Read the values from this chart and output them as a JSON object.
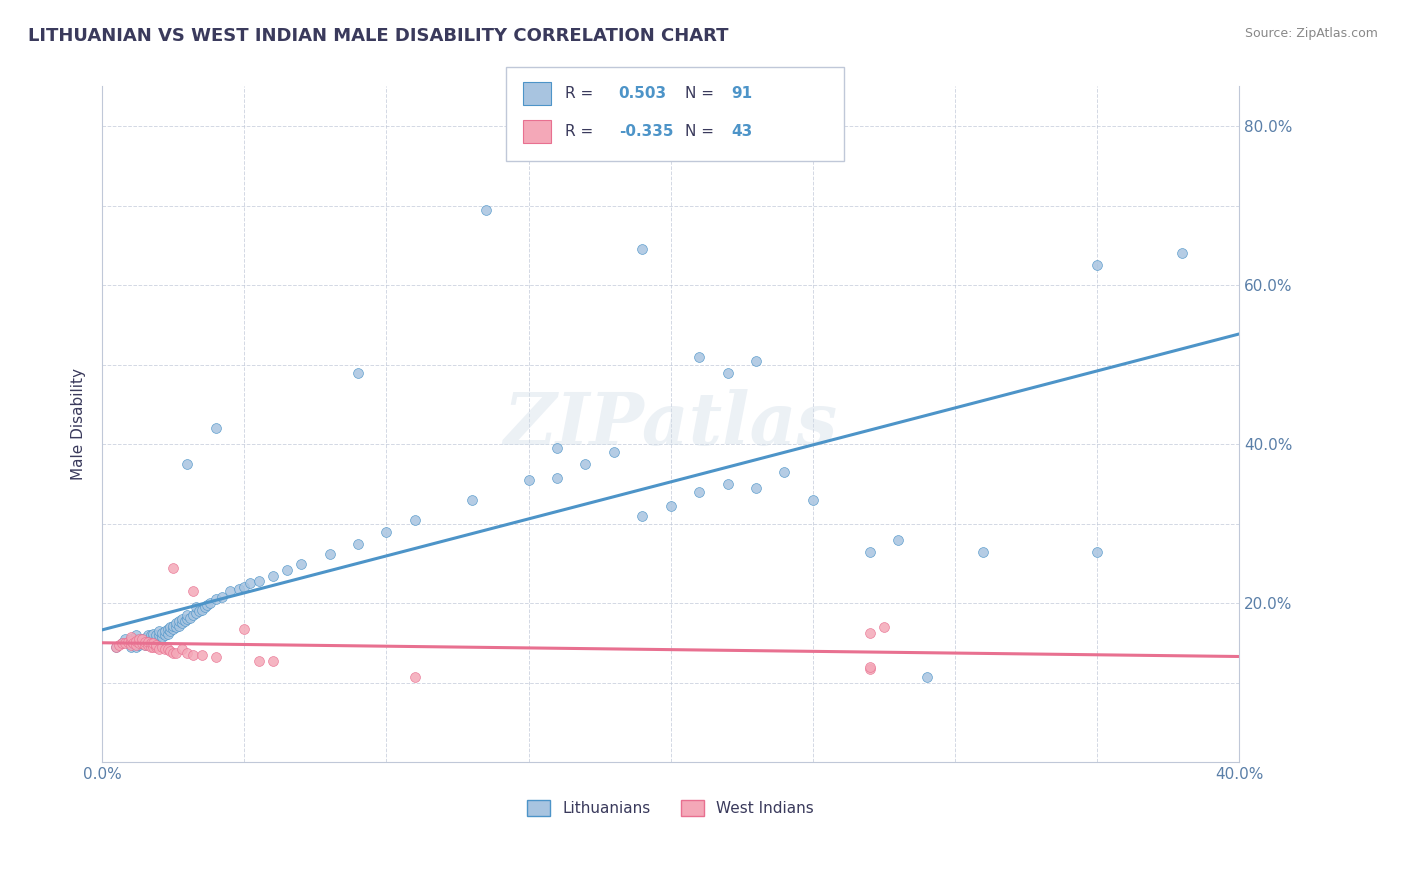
{
  "title": "LITHUANIAN VS WEST INDIAN MALE DISABILITY CORRELATION CHART",
  "source": "Source: ZipAtlas.com",
  "ylabel": "Male Disability",
  "xlim": [
    0.0,
    0.4
  ],
  "ylim": [
    0.0,
    0.85
  ],
  "x_ticks": [
    0.0,
    0.05,
    0.1,
    0.15,
    0.2,
    0.25,
    0.3,
    0.35,
    0.4
  ],
  "x_tick_labels": [
    "0.0%",
    "",
    "",
    "",
    "",
    "",
    "",
    "",
    "40.0%"
  ],
  "y_ticks": [
    0.0,
    0.1,
    0.2,
    0.3,
    0.4,
    0.5,
    0.6,
    0.7,
    0.8
  ],
  "y_tick_labels": [
    "",
    "",
    "20.0%",
    "",
    "40.0%",
    "",
    "60.0%",
    "",
    "80.0%"
  ],
  "blue_color": "#a8c4e0",
  "pink_color": "#f4a8b8",
  "blue_line_color": "#4d94c8",
  "pink_line_color": "#e87090",
  "r_blue": 0.503,
  "n_blue": 91,
  "r_pink": -0.335,
  "n_pink": 43,
  "legend_label_blue": "Lithuanians",
  "legend_label_pink": "West Indians",
  "watermark": "ZIPatlas",
  "title_color": "#3a3a5c",
  "axis_label_color": "#3a3a5c",
  "tick_label_color": "#5a7fa8",
  "legend_r_color": "#3a3a5c",
  "legend_n_color": "#4d94c8",
  "blue_scatter": [
    [
      0.005,
      0.145
    ],
    [
      0.007,
      0.15
    ],
    [
      0.008,
      0.155
    ],
    [
      0.01,
      0.145
    ],
    [
      0.01,
      0.15
    ],
    [
      0.01,
      0.155
    ],
    [
      0.012,
      0.145
    ],
    [
      0.012,
      0.15
    ],
    [
      0.012,
      0.155
    ],
    [
      0.012,
      0.16
    ],
    [
      0.013,
      0.148
    ],
    [
      0.014,
      0.15
    ],
    [
      0.014,
      0.155
    ],
    [
      0.015,
      0.148
    ],
    [
      0.015,
      0.152
    ],
    [
      0.015,
      0.157
    ],
    [
      0.016,
      0.15
    ],
    [
      0.016,
      0.155
    ],
    [
      0.016,
      0.16
    ],
    [
      0.017,
      0.15
    ],
    [
      0.017,
      0.155
    ],
    [
      0.017,
      0.16
    ],
    [
      0.018,
      0.152
    ],
    [
      0.018,
      0.157
    ],
    [
      0.018,
      0.162
    ],
    [
      0.019,
      0.155
    ],
    [
      0.019,
      0.16
    ],
    [
      0.02,
      0.155
    ],
    [
      0.02,
      0.16
    ],
    [
      0.02,
      0.165
    ],
    [
      0.021,
      0.158
    ],
    [
      0.021,
      0.163
    ],
    [
      0.022,
      0.16
    ],
    [
      0.022,
      0.165
    ],
    [
      0.023,
      0.162
    ],
    [
      0.023,
      0.168
    ],
    [
      0.024,
      0.165
    ],
    [
      0.024,
      0.17
    ],
    [
      0.025,
      0.168
    ],
    [
      0.025,
      0.172
    ],
    [
      0.026,
      0.17
    ],
    [
      0.026,
      0.175
    ],
    [
      0.027,
      0.172
    ],
    [
      0.027,
      0.178
    ],
    [
      0.028,
      0.175
    ],
    [
      0.028,
      0.18
    ],
    [
      0.029,
      0.178
    ],
    [
      0.03,
      0.18
    ],
    [
      0.03,
      0.185
    ],
    [
      0.031,
      0.182
    ],
    [
      0.032,
      0.185
    ],
    [
      0.033,
      0.188
    ],
    [
      0.033,
      0.195
    ],
    [
      0.034,
      0.19
    ],
    [
      0.035,
      0.192
    ],
    [
      0.036,
      0.195
    ],
    [
      0.037,
      0.198
    ],
    [
      0.038,
      0.2
    ],
    [
      0.04,
      0.205
    ],
    [
      0.042,
      0.208
    ],
    [
      0.045,
      0.215
    ],
    [
      0.048,
      0.218
    ],
    [
      0.05,
      0.22
    ],
    [
      0.052,
      0.225
    ],
    [
      0.055,
      0.228
    ],
    [
      0.06,
      0.235
    ],
    [
      0.065,
      0.242
    ],
    [
      0.07,
      0.25
    ],
    [
      0.08,
      0.262
    ],
    [
      0.09,
      0.275
    ],
    [
      0.1,
      0.29
    ],
    [
      0.11,
      0.305
    ],
    [
      0.13,
      0.33
    ],
    [
      0.15,
      0.355
    ],
    [
      0.16,
      0.358
    ],
    [
      0.16,
      0.395
    ],
    [
      0.17,
      0.375
    ],
    [
      0.18,
      0.39
    ],
    [
      0.19,
      0.31
    ],
    [
      0.2,
      0.322
    ],
    [
      0.21,
      0.34
    ],
    [
      0.22,
      0.35
    ],
    [
      0.23,
      0.345
    ],
    [
      0.24,
      0.365
    ],
    [
      0.25,
      0.33
    ],
    [
      0.27,
      0.265
    ],
    [
      0.28,
      0.28
    ],
    [
      0.29,
      0.108
    ],
    [
      0.31,
      0.265
    ],
    [
      0.35,
      0.265
    ]
  ],
  "blue_outliers": [
    [
      0.03,
      0.375
    ],
    [
      0.04,
      0.42
    ],
    [
      0.09,
      0.49
    ],
    [
      0.135,
      0.695
    ],
    [
      0.19,
      0.645
    ],
    [
      0.21,
      0.51
    ],
    [
      0.22,
      0.49
    ],
    [
      0.23,
      0.505
    ],
    [
      0.35,
      0.625
    ],
    [
      0.38,
      0.64
    ]
  ],
  "pink_scatter": [
    [
      0.005,
      0.145
    ],
    [
      0.006,
      0.148
    ],
    [
      0.007,
      0.15
    ],
    [
      0.008,
      0.15
    ],
    [
      0.009,
      0.152
    ],
    [
      0.01,
      0.148
    ],
    [
      0.01,
      0.153
    ],
    [
      0.01,
      0.158
    ],
    [
      0.011,
      0.15
    ],
    [
      0.012,
      0.148
    ],
    [
      0.012,
      0.153
    ],
    [
      0.013,
      0.15
    ],
    [
      0.013,
      0.155
    ],
    [
      0.014,
      0.15
    ],
    [
      0.014,
      0.155
    ],
    [
      0.015,
      0.148
    ],
    [
      0.015,
      0.152
    ],
    [
      0.016,
      0.148
    ],
    [
      0.016,
      0.152
    ],
    [
      0.017,
      0.145
    ],
    [
      0.017,
      0.15
    ],
    [
      0.018,
      0.145
    ],
    [
      0.018,
      0.15
    ],
    [
      0.019,
      0.145
    ],
    [
      0.019,
      0.148
    ],
    [
      0.02,
      0.143
    ],
    [
      0.021,
      0.145
    ],
    [
      0.022,
      0.143
    ],
    [
      0.023,
      0.142
    ],
    [
      0.024,
      0.14
    ],
    [
      0.025,
      0.138
    ],
    [
      0.026,
      0.138
    ],
    [
      0.028,
      0.142
    ],
    [
      0.03,
      0.138
    ],
    [
      0.032,
      0.135
    ],
    [
      0.035,
      0.135
    ],
    [
      0.04,
      0.132
    ],
    [
      0.05,
      0.168
    ],
    [
      0.055,
      0.128
    ],
    [
      0.06,
      0.128
    ],
    [
      0.11,
      0.108
    ],
    [
      0.27,
      0.118
    ],
    [
      0.27,
      0.12
    ]
  ],
  "pink_outliers": [
    [
      0.025,
      0.245
    ],
    [
      0.032,
      0.215
    ],
    [
      0.27,
      0.163
    ],
    [
      0.275,
      0.17
    ]
  ]
}
